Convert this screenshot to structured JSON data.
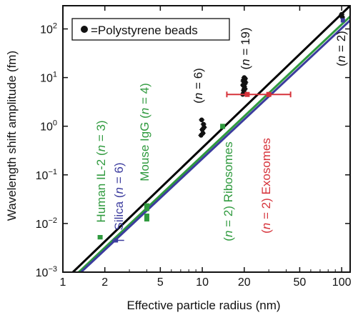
{
  "chart_data": {
    "type": "scatter",
    "title": "",
    "xlabel": "Effective particle radius (nm)",
    "ylabel": "Wavelength shift amplitude (fm)",
    "x_scale": "log",
    "y_scale": "log",
    "xlim": [
      1,
      115
    ],
    "ylim": [
      0.001,
      300
    ],
    "grid": false,
    "legend": {
      "placement": "top-left",
      "marker_label": "=Polystyrene beads"
    },
    "x_ticks": [
      {
        "value": 1,
        "label": "1"
      },
      {
        "value": 2,
        "label": "2"
      },
      {
        "value": 5,
        "label": "5"
      },
      {
        "value": 10,
        "label": "10"
      },
      {
        "value": 20,
        "label": "20"
      },
      {
        "value": 50,
        "label": "50"
      },
      {
        "value": 100,
        "label": "100"
      }
    ],
    "y_ticks": [
      {
        "value": 0.001,
        "base": "10",
        "exp": "−3"
      },
      {
        "value": 0.01,
        "base": "10",
        "exp": "−2"
      },
      {
        "value": 0.1,
        "base": "10",
        "exp": "−1"
      },
      {
        "value": 1,
        "base": "10",
        "exp": "0"
      },
      {
        "value": 10,
        "base": "10",
        "exp": "1"
      },
      {
        "value": 100,
        "base": "10",
        "exp": "2"
      }
    ],
    "theory_lines": [
      {
        "color": "#000000",
        "points": [
          [
            1.18,
            0.001
          ],
          [
            115,
            300
          ]
        ]
      },
      {
        "color": "#2f9a3e",
        "points": [
          [
            1.3,
            0.001
          ],
          [
            115,
            180
          ]
        ]
      },
      {
        "color": "#3c3c9e",
        "points": [
          [
            1.35,
            0.001
          ],
          [
            115,
            150
          ]
        ]
      }
    ],
    "polystyrene_beads": [
      {
        "x": 9.8,
        "y": 0.65
      },
      {
        "x": 10.0,
        "y": 0.85
      },
      {
        "x": 10.2,
        "y": 1.1
      },
      {
        "x": 9.9,
        "y": 1.35
      },
      {
        "x": 10.3,
        "y": 0.95
      },
      {
        "x": 10.1,
        "y": 0.72
      },
      {
        "x": 19.5,
        "y": 4.5
      },
      {
        "x": 19.8,
        "y": 5.5
      },
      {
        "x": 20.0,
        "y": 6.5
      },
      {
        "x": 20.2,
        "y": 7.5
      },
      {
        "x": 19.7,
        "y": 8.5
      },
      {
        "x": 20.3,
        "y": 9.5
      },
      {
        "x": 19.9,
        "y": 5.0
      },
      {
        "x": 20.1,
        "y": 6.0
      },
      {
        "x": 19.6,
        "y": 7.0
      },
      {
        "x": 20.4,
        "y": 8.0
      },
      {
        "x": 19.8,
        "y": 9.0
      },
      {
        "x": 20.0,
        "y": 10.0
      },
      {
        "x": 20.2,
        "y": 5.8
      },
      {
        "x": 100,
        "y": 200
      },
      {
        "x": 101,
        "y": 175
      }
    ],
    "proteins_green": [
      {
        "x": 1.85,
        "y": 0.0052,
        "ylo": 0.0047,
        "yhi": 0.0058
      },
      {
        "x": 4.0,
        "y": 0.013,
        "ylo": 0.011,
        "yhi": 0.016
      },
      {
        "x": 4.0,
        "y": 0.021,
        "ylo": 0.018,
        "yhi": 0.026
      },
      {
        "x": 14.0,
        "y": 1.0,
        "ylo": 0.88,
        "yhi": 1.12
      }
    ],
    "silica_blue": [
      {
        "x": 2.4,
        "y": 0.0045,
        "xlo": 2.25,
        "xhi": 2.75
      },
      {
        "x": 102,
        "y": 150,
        "xlo": 99,
        "xhi": 105
      }
    ],
    "exosomes_red": [
      {
        "x": 21.0,
        "y": 4.5,
        "xlo": 15.0,
        "xhi": 43.0
      },
      {
        "x": 30.0,
        "y": 4.5
      }
    ],
    "annotations": [
      {
        "id": "il2",
        "color": "#2f9a3e",
        "pre": "Human IL-2 (",
        "n": "n",
        "post": " = 3)"
      },
      {
        "id": "silica",
        "color": "#3c3c9e",
        "pre": "Silica (",
        "n": "n",
        "post": " = 6)"
      },
      {
        "id": "igg",
        "color": "#2f9a3e",
        "pre": "Mouse IgG (",
        "n": "n",
        "post": " = 4)"
      },
      {
        "id": "n6",
        "color": "#111111",
        "pre": "(",
        "n": "n",
        "post": " = 6)"
      },
      {
        "id": "ribosomes",
        "color": "#2f9a3e",
        "pre": "(",
        "n": "n",
        "post": " = 2) Ribosomes"
      },
      {
        "id": "n19",
        "color": "#111111",
        "pre": "(",
        "n": "n",
        "post": " = 19)"
      },
      {
        "id": "exosomes",
        "color": "#d6333b",
        "pre": "(",
        "n": "n",
        "post": " = 2) Exosomes"
      },
      {
        "id": "n2",
        "color": "#111111",
        "pre": "(",
        "n": "n",
        "post": " = 2)"
      }
    ]
  }
}
